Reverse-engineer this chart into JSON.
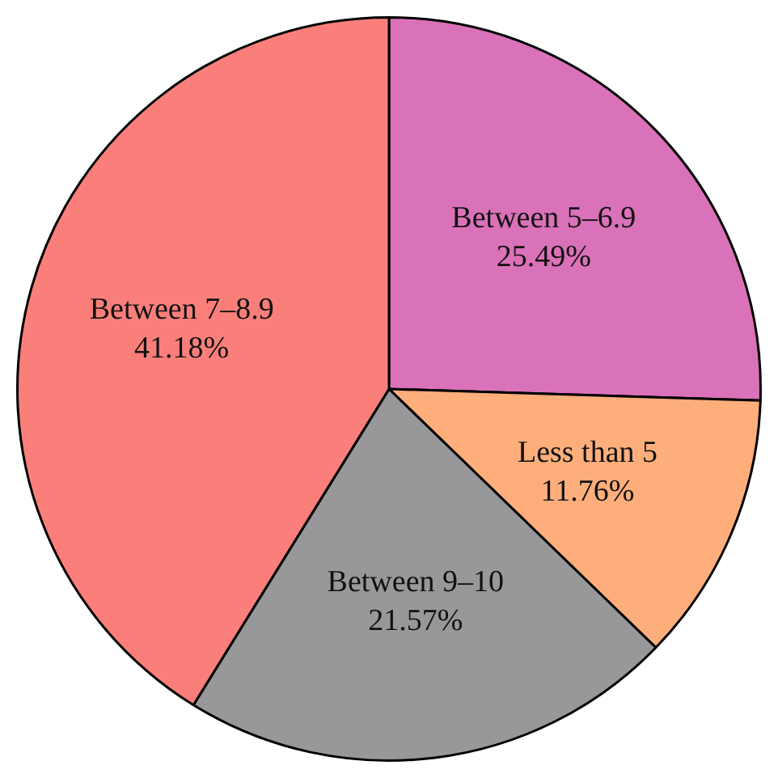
{
  "chart_data": {
    "type": "pie",
    "categories": [
      "Between 5–6.9",
      "Less than 5",
      "Between 9–10",
      "Between 7–8.9"
    ],
    "values": [
      25.49,
      11.76,
      21.57,
      41.18
    ],
    "value_labels": [
      "25.49%",
      "11.76%",
      "21.57%",
      "41.18%"
    ],
    "colors": [
      "#da72b9",
      "#fdae7b",
      "#98989a",
      "#fa7f7a"
    ],
    "legend": false
  }
}
